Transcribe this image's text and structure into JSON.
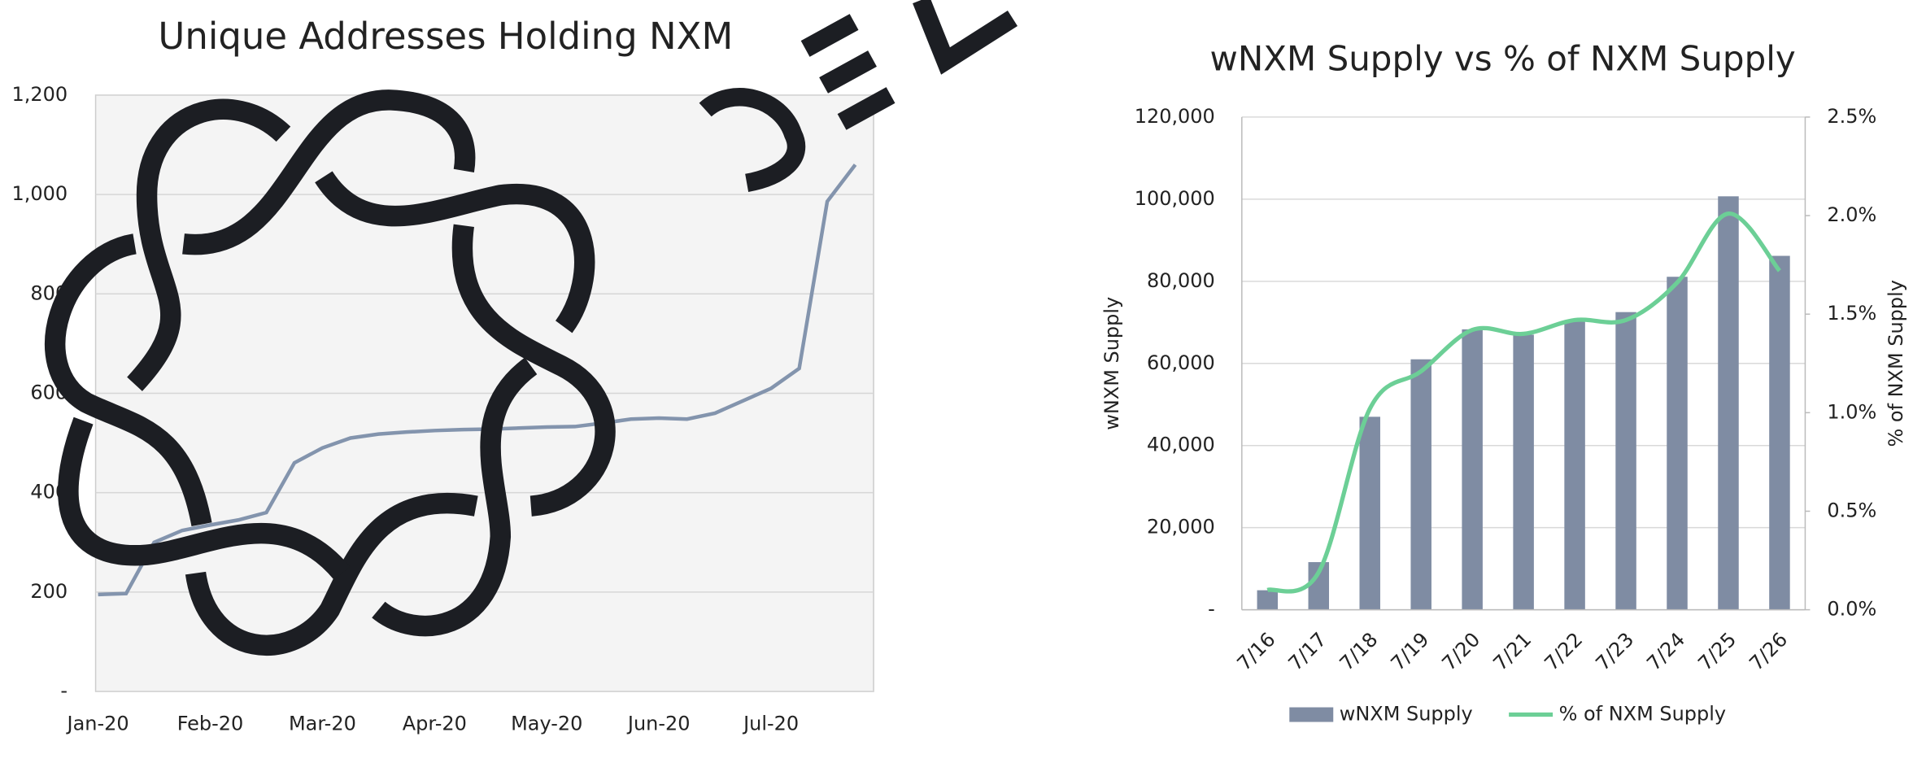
{
  "chart_data": [
    {
      "type": "line",
      "title": "Unique Addresses Holding NXM",
      "categories": [
        "Jan-20",
        null,
        null,
        null,
        "Feb-20",
        null,
        null,
        null,
        "Mar-20",
        null,
        null,
        null,
        "Apr-20",
        null,
        null,
        null,
        "May-20",
        null,
        null,
        null,
        "Jun-20",
        null,
        null,
        null,
        "Jul-20",
        null,
        null,
        null
      ],
      "values": [
        195,
        197,
        300,
        324,
        335,
        345,
        360,
        460,
        490,
        510,
        518,
        522,
        525,
        527,
        528,
        530,
        532,
        533,
        540,
        548,
        550,
        548,
        560,
        585,
        610,
        650,
        986,
        1060
      ],
      "color": "#8394ad",
      "ylim": [
        0,
        1200
      ],
      "yticks": [
        {
          "value": 0,
          "label": "-"
        },
        200,
        400,
        600,
        800,
        {
          "value": 1000,
          "label": "1,000"
        },
        {
          "value": 1200,
          "label": "1,200"
        }
      ],
      "grid": true
    },
    {
      "type": "bar_line",
      "title": "wNXM Supply vs % of NXM Supply",
      "categories": [
        "7/16",
        "7/17",
        "7/18",
        "7/19",
        "7/20",
        "7/21",
        "7/22",
        "7/23",
        "7/24",
        "7/25",
        "7/26"
      ],
      "series": [
        {
          "name": "wNXM Supply",
          "type": "bar",
          "color": "#7f8ca3",
          "values": [
            4750,
            11600,
            47000,
            61000,
            68300,
            67000,
            70400,
            72500,
            81100,
            100700,
            86200
          ]
        },
        {
          "name": "% of NXM Supply",
          "type": "line",
          "axis": "y2",
          "color": "#6ccf96",
          "values": [
            0.1,
            0.19,
            1.02,
            1.21,
            1.42,
            1.4,
            1.47,
            1.47,
            1.66,
            2.01,
            1.72
          ]
        }
      ],
      "y_label": "wNXM Supply",
      "y2_label": "% of NXM Supply",
      "ylim": [
        0,
        120000
      ],
      "yticks": [
        {
          "value": 0,
          "label": "-"
        },
        {
          "value": 20000,
          "label": "20,000"
        },
        {
          "value": 40000,
          "label": "40,000"
        },
        {
          "value": 60000,
          "label": "60,000"
        },
        {
          "value": 80000,
          "label": "80,000"
        },
        {
          "value": 100000,
          "label": "100,000"
        },
        {
          "value": 120000,
          "label": "120,000"
        }
      ],
      "y2lim": [
        0,
        2.5
      ],
      "y2ticks": [
        {
          "value": 0,
          "label": "0.0%"
        },
        {
          "value": 0.5,
          "label": "0.5%"
        },
        {
          "value": 1,
          "label": "1.0%"
        },
        {
          "value": 1.5,
          "label": "1.5%"
        },
        {
          "value": 2,
          "label": "2.0%"
        },
        {
          "value": 2.5,
          "label": "2.5%"
        }
      ],
      "grid": true,
      "legend": "bottom"
    }
  ]
}
